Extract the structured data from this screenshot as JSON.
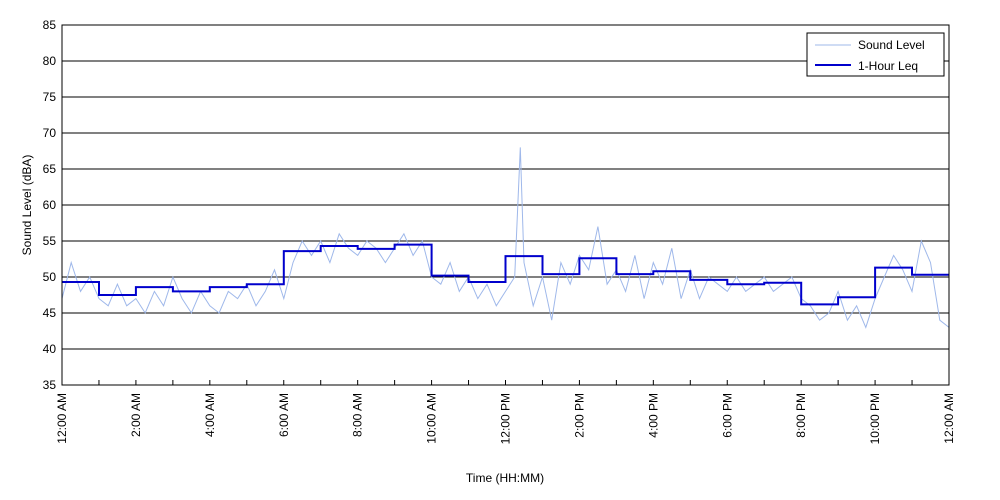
{
  "chart_data": {
    "type": "line",
    "title": "",
    "xlabel": "Time (HH:MM)",
    "ylabel": "Sound Level (dBA)",
    "xlim": [
      0,
      24
    ],
    "ylim": [
      35,
      85
    ],
    "y_ticks": [
      35,
      40,
      45,
      50,
      55,
      60,
      65,
      70,
      75,
      80,
      85
    ],
    "x_tick_labels": [
      "12:00 AM",
      "2:00 AM",
      "4:00 AM",
      "6:00 AM",
      "8:00 AM",
      "10:00 AM",
      "12:00 PM",
      "2:00 PM",
      "4:00 PM",
      "6:00 PM",
      "8:00 PM",
      "10:00 PM",
      "12:00 AM"
    ],
    "grid": "horizontal",
    "legend_position": "top-right",
    "series": [
      {
        "name": "Sound Level",
        "style": "thin",
        "color": "#9fb8ea",
        "x": [
          0,
          0.25,
          0.5,
          0.75,
          1,
          1.25,
          1.5,
          1.75,
          2,
          2.25,
          2.5,
          2.75,
          3,
          3.25,
          3.5,
          3.75,
          4,
          4.25,
          4.5,
          4.75,
          5,
          5.25,
          5.5,
          5.75,
          6,
          6.25,
          6.5,
          6.75,
          7,
          7.25,
          7.5,
          7.75,
          8,
          8.25,
          8.5,
          8.75,
          9,
          9.25,
          9.5,
          9.75,
          10,
          10.25,
          10.5,
          10.75,
          11,
          11.25,
          11.5,
          11.75,
          12,
          12.25,
          12.4,
          12.5,
          12.75,
          13,
          13.25,
          13.5,
          13.75,
          14,
          14.25,
          14.5,
          14.75,
          15,
          15.25,
          15.5,
          15.75,
          16,
          16.25,
          16.5,
          16.75,
          17,
          17.25,
          17.5,
          17.75,
          18,
          18.25,
          18.5,
          18.75,
          19,
          19.25,
          19.5,
          19.75,
          20,
          20.25,
          20.5,
          20.75,
          21,
          21.25,
          21.5,
          21.75,
          22,
          22.25,
          22.5,
          22.75,
          23,
          23.25,
          23.5,
          23.75,
          24
        ],
        "y": [
          47,
          52,
          48,
          50,
          47,
          46,
          49,
          46,
          47,
          45,
          48,
          46,
          50,
          47,
          45,
          48,
          46,
          45,
          48,
          47,
          49,
          46,
          48,
          51,
          47,
          52,
          55,
          53,
          55,
          52,
          56,
          54,
          53,
          55,
          54,
          52,
          54,
          56,
          53,
          55,
          50,
          49,
          52,
          48,
          50,
          47,
          49,
          46,
          48,
          50,
          68,
          52,
          46,
          50,
          44,
          52,
          49,
          53,
          51,
          57,
          49,
          51,
          48,
          53,
          47,
          52,
          49,
          54,
          47,
          51,
          47,
          50,
          49,
          48,
          50,
          48,
          49,
          50,
          48,
          49,
          50,
          47,
          46,
          44,
          45,
          48,
          44,
          46,
          43,
          47,
          50,
          53,
          51,
          48,
          55,
          52,
          44,
          43
        ],
        "markers_extra_note": ""
      },
      {
        "name": "1-Hour Leq",
        "style": "step",
        "color": "#0000cc",
        "x": [
          0,
          1,
          2,
          3,
          4,
          5,
          6,
          7,
          8,
          9,
          10,
          11,
          12,
          13,
          14,
          15,
          16,
          17,
          18,
          19,
          20,
          21,
          22,
          23
        ],
        "y": [
          49.3,
          47.5,
          48.6,
          48.0,
          48.6,
          49.0,
          53.6,
          54.3,
          53.9,
          54.5,
          50.2,
          49.3,
          52.9,
          50.4,
          52.6,
          50.4,
          50.8,
          49.6,
          49.0,
          49.2,
          46.2,
          47.2,
          51.3,
          50.3
        ]
      }
    ]
  },
  "legend": {
    "items": [
      {
        "label": "Sound Level",
        "color": "#9fb8ea"
      },
      {
        "label": "1-Hour Leq",
        "color": "#0000cc"
      }
    ]
  }
}
